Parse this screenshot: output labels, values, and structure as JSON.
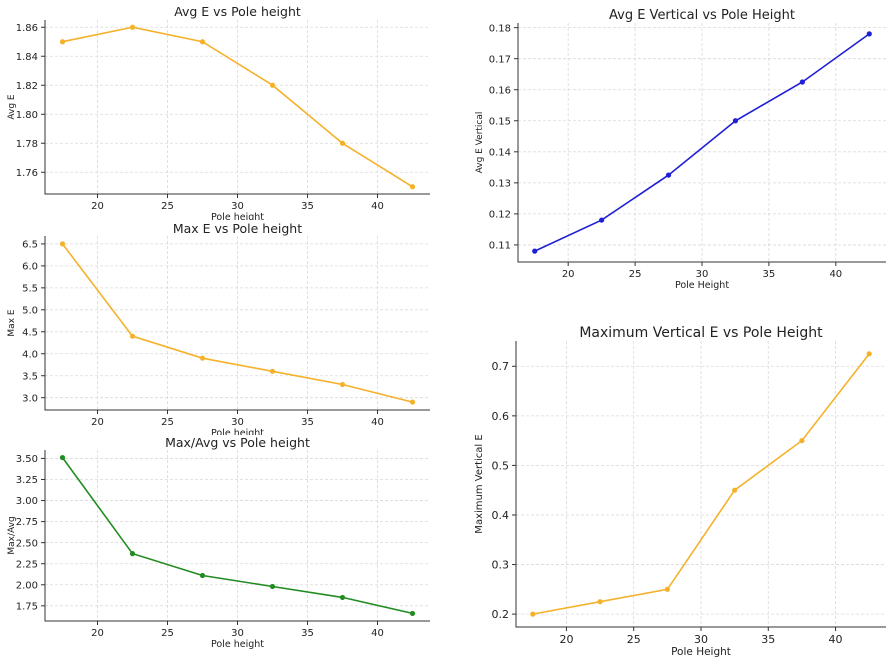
{
  "chart_data": [
    {
      "type": "line",
      "title": "Avg E vs Pole height",
      "xlabel": "Pole height",
      "ylabel": "Avg E",
      "x": [
        17.5,
        22.5,
        27.5,
        32.5,
        37.5,
        42.5
      ],
      "series": [
        {
          "values": [
            1.85,
            1.86,
            1.85,
            1.82,
            1.78,
            1.75
          ],
          "color": "#f5b12a"
        }
      ],
      "xlim": [
        16.25,
        43.75
      ],
      "ylim": [
        1.745,
        1.865
      ],
      "xticks": [
        20,
        25,
        30,
        35,
        40
      ],
      "yticks": [
        1.76,
        1.78,
        1.8,
        1.82,
        1.84,
        1.86
      ],
      "ytick_labels": [
        "1.76",
        "1.78",
        "1.80",
        "1.82",
        "1.84",
        "1.86"
      ],
      "grid": true
    },
    {
      "type": "line",
      "title": "Max E vs Pole height",
      "xlabel": "Pole height",
      "ylabel": "Max E",
      "x": [
        17.5,
        22.5,
        27.5,
        32.5,
        37.5,
        42.5
      ],
      "series": [
        {
          "values": [
            6.5,
            4.4,
            3.9,
            3.6,
            3.3,
            2.9
          ],
          "color": "#f5b12a"
        }
      ],
      "xlim": [
        16.25,
        43.75
      ],
      "ylim": [
        2.72,
        6.68
      ],
      "xticks": [
        20,
        25,
        30,
        35,
        40
      ],
      "yticks": [
        3.0,
        3.5,
        4.0,
        4.5,
        5.0,
        5.5,
        6.0,
        6.5
      ],
      "ytick_labels": [
        "3.0",
        "3.5",
        "4.0",
        "4.5",
        "5.0",
        "5.5",
        "6.0",
        "6.5"
      ],
      "grid": true
    },
    {
      "type": "line",
      "title": "Max/Avg vs Pole height",
      "xlabel": "Pole height",
      "ylabel": "Max/Avg",
      "x": [
        17.5,
        22.5,
        27.5,
        32.5,
        37.5,
        42.5
      ],
      "series": [
        {
          "values": [
            3.51,
            2.37,
            2.11,
            1.98,
            1.85,
            1.66
          ],
          "color": "#228b22"
        }
      ],
      "xlim": [
        16.25,
        43.75
      ],
      "ylim": [
        1.57,
        3.6
      ],
      "xticks": [
        20,
        25,
        30,
        35,
        40
      ],
      "yticks": [
        1.75,
        2.0,
        2.25,
        2.5,
        2.75,
        3.0,
        3.25,
        3.5
      ],
      "ytick_labels": [
        "1.75",
        "2.00",
        "2.25",
        "2.50",
        "2.75",
        "3.00",
        "3.25",
        "3.50"
      ],
      "grid": true
    },
    {
      "type": "line",
      "title": "Avg E Vertical vs Pole Height",
      "xlabel": "Pole Height",
      "ylabel": "Avg E Vertical",
      "x": [
        17.5,
        22.5,
        27.5,
        32.5,
        37.5,
        42.5
      ],
      "series": [
        {
          "values": [
            0.108,
            0.118,
            0.1325,
            0.15,
            0.1625,
            0.178
          ],
          "color": "#1f1fd6"
        }
      ],
      "xlim": [
        16.25,
        43.75
      ],
      "ylim": [
        0.1045,
        0.1815
      ],
      "xticks": [
        20,
        25,
        30,
        35,
        40
      ],
      "yticks": [
        0.11,
        0.12,
        0.13,
        0.14,
        0.15,
        0.16,
        0.17,
        0.18
      ],
      "ytick_labels": [
        "0.11",
        "0.12",
        "0.13",
        "0.14",
        "0.15",
        "0.16",
        "0.17",
        "0.18"
      ],
      "grid": true
    },
    {
      "type": "line",
      "title": "Maximum Vertical E vs Pole Height",
      "xlabel": "Pole Height",
      "ylabel": "Maximum Vertical E",
      "x": [
        17.5,
        22.5,
        27.5,
        32.5,
        37.5,
        42.5
      ],
      "series": [
        {
          "values": [
            0.2,
            0.225,
            0.25,
            0.45,
            0.55,
            0.725
          ],
          "color": "#f5b12a"
        }
      ],
      "xlim": [
        16.25,
        43.75
      ],
      "ylim": [
        0.174,
        0.751
      ],
      "xticks": [
        20,
        25,
        30,
        35,
        40
      ],
      "yticks": [
        0.2,
        0.3,
        0.4,
        0.5,
        0.6,
        0.7
      ],
      "ytick_labels": [
        "0.2",
        "0.3",
        "0.4",
        "0.5",
        "0.6",
        "0.7"
      ],
      "grid": true
    }
  ]
}
